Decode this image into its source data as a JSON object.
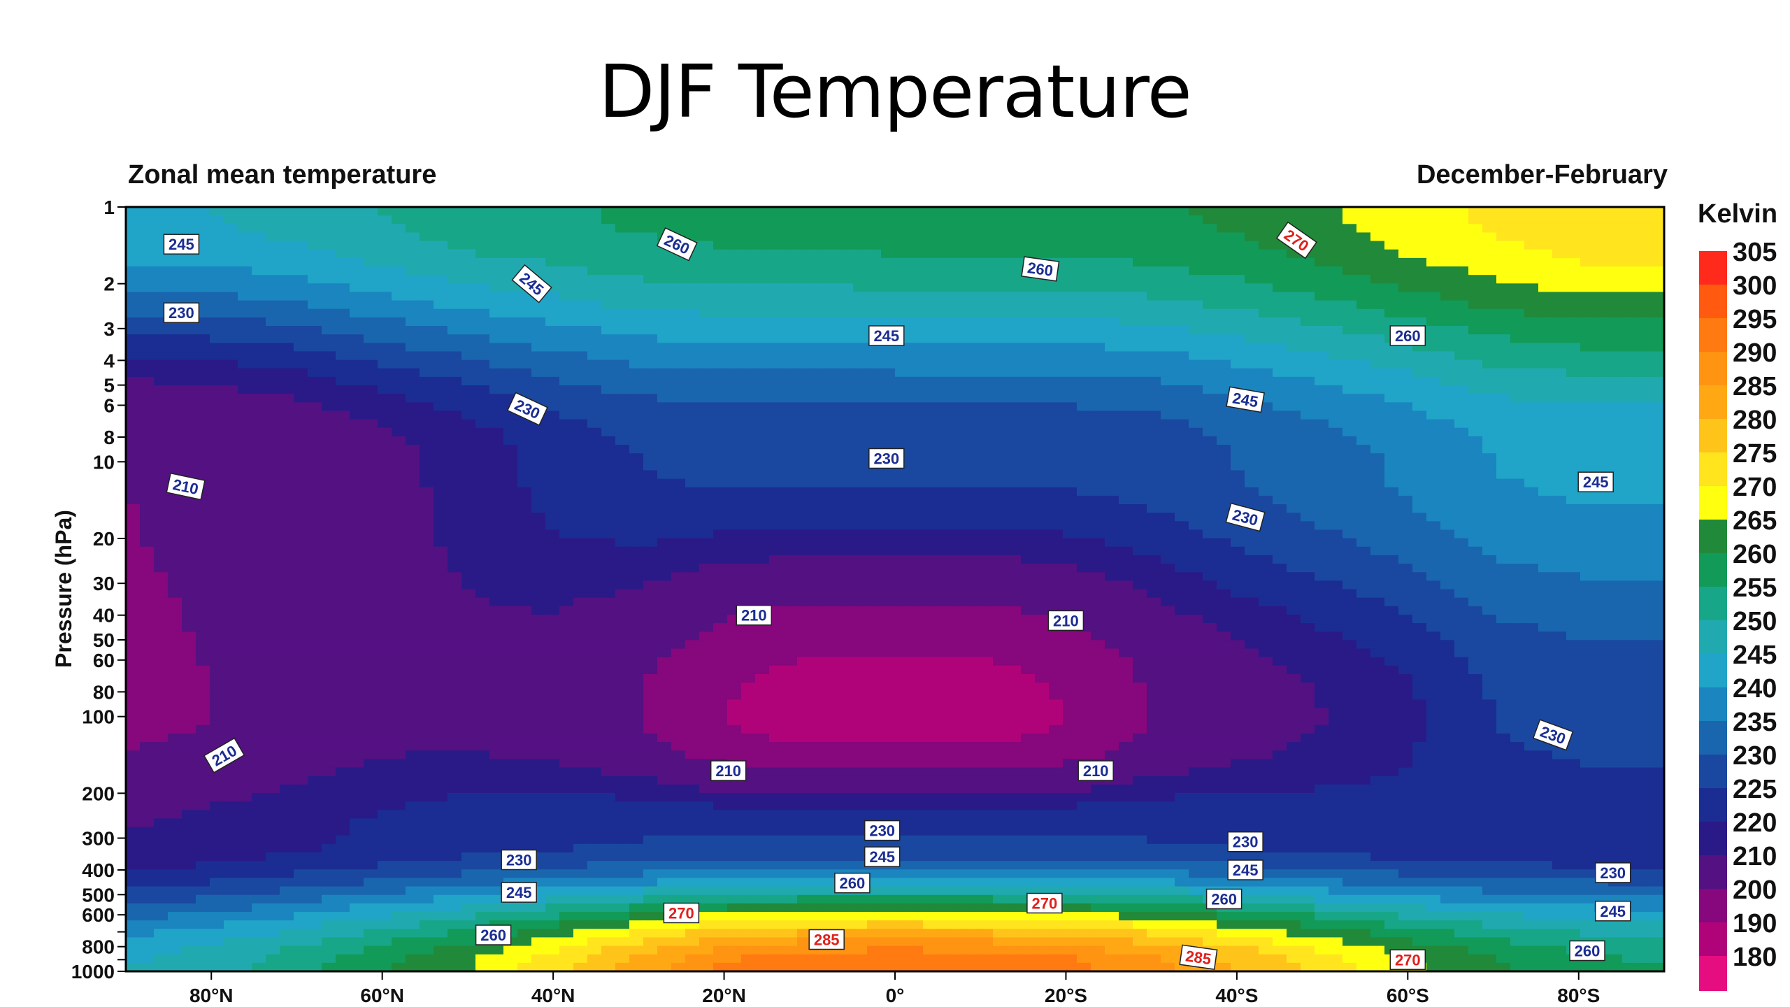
{
  "slide_title": "DJF Temperature",
  "chart_data": {
    "type": "heatmap",
    "title": "Zonal mean temperature",
    "subtitle": "December-February",
    "ylabel": "Pressure (hPa)",
    "xlabel": "",
    "y_scale": "log",
    "y_reversed": true,
    "xlim": [
      90,
      -90
    ],
    "ylim": [
      1000,
      1
    ],
    "x_ticks": [
      {
        "value": 80,
        "label": "80°N"
      },
      {
        "value": 60,
        "label": "60°N"
      },
      {
        "value": 40,
        "label": "40°N"
      },
      {
        "value": 20,
        "label": "20°N"
      },
      {
        "value": 0,
        "label": "0°"
      },
      {
        "value": -20,
        "label": "20°S"
      },
      {
        "value": -40,
        "label": "40°S"
      },
      {
        "value": -60,
        "label": "60°S"
      },
      {
        "value": -80,
        "label": "80°S"
      }
    ],
    "y_ticks": [
      {
        "value": 1,
        "label": "1"
      },
      {
        "value": 2,
        "label": "2"
      },
      {
        "value": 3,
        "label": "3"
      },
      {
        "value": 4,
        "label": "4"
      },
      {
        "value": 5,
        "label": "5"
      },
      {
        "value": 6,
        "label": "6"
      },
      {
        "value": 8,
        "label": "8"
      },
      {
        "value": 10,
        "label": "10"
      },
      {
        "value": 20,
        "label": "20"
      },
      {
        "value": 30,
        "label": "30"
      },
      {
        "value": 40,
        "label": "40"
      },
      {
        "value": 50,
        "label": "50"
      },
      {
        "value": 60,
        "label": "60"
      },
      {
        "value": 80,
        "label": "80"
      },
      {
        "value": 100,
        "label": "100"
      },
      {
        "value": 200,
        "label": "200"
      },
      {
        "value": 300,
        "label": "300"
      },
      {
        "value": 400,
        "label": "400"
      },
      {
        "value": 500,
        "label": "500"
      },
      {
        "value": 600,
        "label": "600"
      },
      {
        "value": 700,
        "label": ""
      },
      {
        "value": 800,
        "label": "800"
      },
      {
        "value": 900,
        "label": ""
      },
      {
        "value": 1000,
        "label": "1000"
      }
    ],
    "colorbar": {
      "title": "Kelvin",
      "labels": [
        "305",
        "300",
        "295",
        "290",
        "285",
        "280",
        "275",
        "270",
        "265",
        "260",
        "255",
        "250",
        "245",
        "240",
        "235",
        "230",
        "225",
        "220",
        "210",
        "200",
        "190",
        "180"
      ],
      "colors": [
        "#ff2a1c",
        "#ff5a10",
        "#ff7a10",
        "#ff9412",
        "#ffa814",
        "#ffc41a",
        "#ffe41e",
        "#ffff10",
        "#208a3a",
        "#129a58",
        "#18a688",
        "#20aab0",
        "#20a4c8",
        "#1b85bf",
        "#1a66ae",
        "#1a48a0",
        "#1b2d92",
        "#2a1a88",
        "#541182",
        "#87077c",
        "#b10379",
        "#e50d80"
      ]
    },
    "zonal_profile": {
      "lat": [
        90,
        80,
        70,
        60,
        50,
        40,
        30,
        20,
        10,
        0,
        -10,
        -20,
        -30,
        -40,
        -50,
        -60,
        -70,
        -80,
        -90
      ],
      "T_at_1hPa": [
        250,
        250,
        252,
        255,
        258,
        259,
        261,
        262,
        262,
        263,
        263,
        263,
        264,
        266,
        269,
        273,
        276,
        279,
        279
      ],
      "T_at_10hPa": [
        210,
        212,
        214,
        218,
        222,
        227,
        230,
        231,
        231,
        231,
        231,
        231,
        232,
        235,
        238,
        241,
        245,
        246,
        246
      ],
      "T_at_100hPa": [
        208,
        210,
        215,
        218,
        218,
        216,
        210,
        200,
        195,
        195,
        195,
        200,
        210,
        216,
        220,
        224,
        230,
        232,
        232
      ],
      "T_at_300hPa": [
        220,
        222,
        224,
        226,
        228,
        229,
        230,
        230,
        230,
        230,
        230,
        230,
        230,
        229,
        228,
        227,
        226,
        226,
        226
      ],
      "T_at_1000hPa": [
        250,
        253,
        258,
        264,
        270,
        278,
        287,
        296,
        299,
        300,
        299,
        297,
        292,
        285,
        278,
        271,
        266,
        262,
        260
      ]
    },
    "contour_labels": [
      {
        "text": "245",
        "lat": 83.5,
        "p": 1.4,
        "rot": 0,
        "hot": false
      },
      {
        "text": "230",
        "lat": 83.5,
        "p": 2.6,
        "rot": 0,
        "hot": false
      },
      {
        "text": "210",
        "lat": 83,
        "p": 12.5,
        "rot": 12,
        "hot": false
      },
      {
        "text": "210",
        "lat": 78.5,
        "p": 142,
        "rot": -30,
        "hot": false
      },
      {
        "text": "260",
        "lat": 25.5,
        "p": 1.4,
        "rot": 25,
        "hot": false
      },
      {
        "text": "245",
        "lat": 42.5,
        "p": 2.0,
        "rot": 40,
        "hot": false
      },
      {
        "text": "230",
        "lat": 43,
        "p": 6.2,
        "rot": 25,
        "hot": false
      },
      {
        "text": "260",
        "lat": -17,
        "p": 1.75,
        "rot": 8,
        "hot": false
      },
      {
        "text": "270",
        "lat": -47,
        "p": 1.35,
        "rot": 35,
        "hot": true
      },
      {
        "text": "245",
        "lat": 1,
        "p": 3.2,
        "rot": 0,
        "hot": false
      },
      {
        "text": "260",
        "lat": -60,
        "p": 3.2,
        "rot": 0,
        "hot": false
      },
      {
        "text": "245",
        "lat": -41,
        "p": 5.7,
        "rot": 10,
        "hot": false
      },
      {
        "text": "230",
        "lat": 1,
        "p": 9.7,
        "rot": 0,
        "hot": false
      },
      {
        "text": "230",
        "lat": -41,
        "p": 16.5,
        "rot": 15,
        "hot": false
      },
      {
        "text": "245",
        "lat": -82,
        "p": 12,
        "rot": 0,
        "hot": false
      },
      {
        "text": "210",
        "lat": 16.5,
        "p": 40,
        "rot": 0,
        "hot": false
      },
      {
        "text": "210",
        "lat": -20,
        "p": 42,
        "rot": 0,
        "hot": false
      },
      {
        "text": "230",
        "lat": -77,
        "p": 118,
        "rot": 20,
        "hot": false
      },
      {
        "text": "210",
        "lat": 19.5,
        "p": 163,
        "rot": 0,
        "hot": false
      },
      {
        "text": "210",
        "lat": -23.5,
        "p": 163,
        "rot": 0,
        "hot": false
      },
      {
        "text": "230",
        "lat": 1.5,
        "p": 280,
        "rot": 0,
        "hot": false
      },
      {
        "text": "245",
        "lat": 1.5,
        "p": 355,
        "rot": 0,
        "hot": false
      },
      {
        "text": "260",
        "lat": 5,
        "p": 450,
        "rot": 0,
        "hot": false
      },
      {
        "text": "230",
        "lat": 44,
        "p": 365,
        "rot": 0,
        "hot": false
      },
      {
        "text": "245",
        "lat": 44,
        "p": 490,
        "rot": 0,
        "hot": false
      },
      {
        "text": "260",
        "lat": 47,
        "p": 720,
        "rot": 0,
        "hot": false
      },
      {
        "text": "270",
        "lat": 25,
        "p": 590,
        "rot": 0,
        "hot": true
      },
      {
        "text": "285",
        "lat": 8,
        "p": 750,
        "rot": 0,
        "hot": true
      },
      {
        "text": "270",
        "lat": -17.5,
        "p": 540,
        "rot": 0,
        "hot": true
      },
      {
        "text": "230",
        "lat": -41,
        "p": 310,
        "rot": 0,
        "hot": false
      },
      {
        "text": "245",
        "lat": -41,
        "p": 400,
        "rot": 0,
        "hot": false
      },
      {
        "text": "260",
        "lat": -38.5,
        "p": 520,
        "rot": 0,
        "hot": false
      },
      {
        "text": "285",
        "lat": -35.5,
        "p": 880,
        "rot": 8,
        "hot": true
      },
      {
        "text": "270",
        "lat": -60,
        "p": 900,
        "rot": 0,
        "hot": true
      },
      {
        "text": "230",
        "lat": -84,
        "p": 410,
        "rot": 0,
        "hot": false
      },
      {
        "text": "245",
        "lat": -84,
        "p": 580,
        "rot": 0,
        "hot": false
      },
      {
        "text": "260",
        "lat": -81,
        "p": 830,
        "rot": 0,
        "hot": false
      }
    ]
  }
}
